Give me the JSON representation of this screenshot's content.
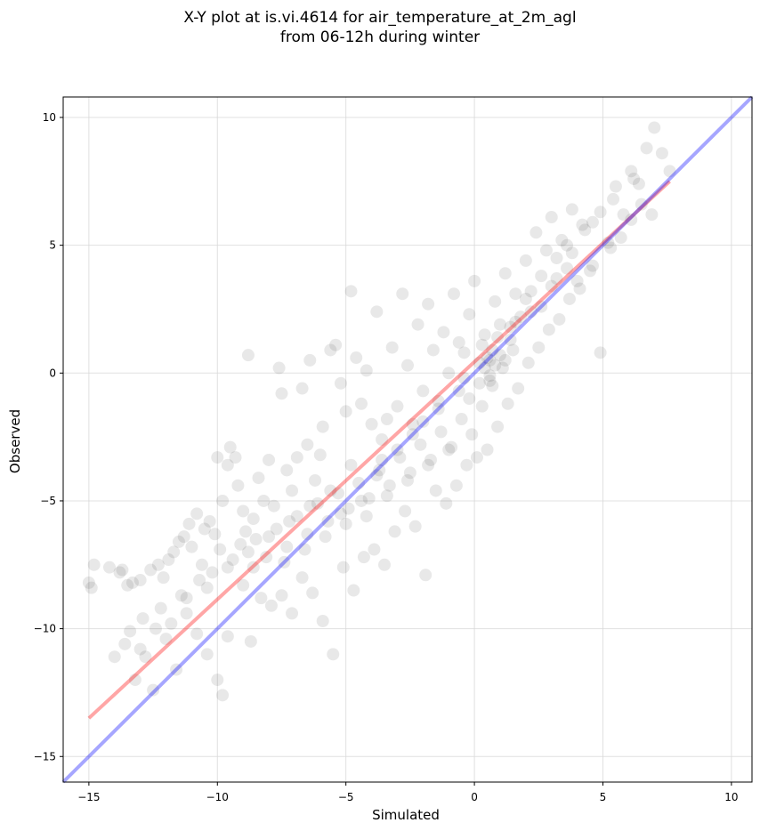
{
  "figure": {
    "title_line1": "X-Y plot at is.vi.4614 for air_temperature_at_2m_agl",
    "title_line2": "from 06-12h during winter"
  },
  "chart_data": {
    "type": "scatter",
    "title": "X-Y plot at is.vi.4614 for air_temperature_at_2m_agl\nfrom 06-12h during winter",
    "xlabel": "Simulated",
    "ylabel": "Observed",
    "xlim": [
      -16.0,
      10.8
    ],
    "ylim": [
      -16.0,
      10.8
    ],
    "x_ticks": [
      -15,
      -10,
      -5,
      0,
      5,
      10
    ],
    "y_ticks": [
      -15,
      -10,
      -5,
      0,
      5,
      10
    ],
    "x_tick_labels": [
      "−15",
      "−10",
      "−5",
      "0",
      "5",
      "10"
    ],
    "y_tick_labels": [
      "−15",
      "−10",
      "−5",
      "0",
      "5",
      "10"
    ],
    "grid": true,
    "point_color": "#000000",
    "point_opacity": 0.09,
    "points": [
      [
        -15.0,
        -8.2
      ],
      [
        -14.8,
        -7.5
      ],
      [
        -14.2,
        -7.6
      ],
      [
        -13.8,
        -7.8
      ],
      [
        -13.7,
        -7.7
      ],
      [
        -13.5,
        -8.3
      ],
      [
        -13.3,
        -8.2
      ],
      [
        -13.0,
        -8.1
      ],
      [
        -12.6,
        -7.7
      ],
      [
        -12.3,
        -7.5
      ],
      [
        -12.1,
        -8.0
      ],
      [
        -11.9,
        -7.3
      ],
      [
        -11.7,
        -7.0
      ],
      [
        -11.5,
        -6.6
      ],
      [
        -11.3,
        -6.4
      ],
      [
        -11.1,
        -5.9
      ],
      [
        -11.0,
        -6.8
      ],
      [
        -10.8,
        -5.5
      ],
      [
        -10.6,
        -7.5
      ],
      [
        -10.5,
        -6.1
      ],
      [
        -10.3,
        -5.8
      ],
      [
        -10.1,
        -6.3
      ],
      [
        -10.0,
        -3.3
      ],
      [
        -9.8,
        -5.0
      ],
      [
        -9.6,
        -3.6
      ],
      [
        -9.5,
        -2.9
      ],
      [
        -9.3,
        -3.3
      ],
      [
        -9.2,
        -4.4
      ],
      [
        -9.0,
        -5.4
      ],
      [
        -8.9,
        -6.2
      ],
      [
        -8.8,
        0.7
      ],
      [
        -8.6,
        -5.7
      ],
      [
        -8.4,
        -4.1
      ],
      [
        -8.2,
        -5.0
      ],
      [
        -8.0,
        -3.4
      ],
      [
        -7.8,
        -5.2
      ],
      [
        -7.6,
        0.2
      ],
      [
        -7.5,
        -0.8
      ],
      [
        -7.3,
        -3.8
      ],
      [
        -7.1,
        -4.6
      ],
      [
        -6.9,
        -3.3
      ],
      [
        -6.7,
        -0.6
      ],
      [
        -6.5,
        -2.8
      ],
      [
        -6.4,
        0.5
      ],
      [
        -6.2,
        -4.2
      ],
      [
        -6.0,
        -3.2
      ],
      [
        -5.9,
        -2.1
      ],
      [
        -5.6,
        0.9
      ],
      [
        -5.4,
        1.1
      ],
      [
        -5.2,
        -0.4
      ],
      [
        -5.0,
        -1.5
      ],
      [
        -4.8,
        3.2
      ],
      [
        -4.6,
        0.6
      ],
      [
        -4.4,
        -1.2
      ],
      [
        -4.2,
        0.1
      ],
      [
        -4.0,
        -2.0
      ],
      [
        -3.8,
        2.4
      ],
      [
        -3.6,
        -3.4
      ],
      [
        -3.4,
        -1.8
      ],
      [
        -3.2,
        1.0
      ],
      [
        -3.0,
        -1.3
      ],
      [
        -2.8,
        3.1
      ],
      [
        -2.6,
        0.3
      ],
      [
        -2.4,
        -2.4
      ],
      [
        -2.2,
        1.9
      ],
      [
        -2.0,
        -0.7
      ],
      [
        -1.8,
        2.7
      ],
      [
        -1.6,
        0.9
      ],
      [
        -1.4,
        -1.1
      ],
      [
        -1.2,
        1.6
      ],
      [
        -1.0,
        0.0
      ],
      [
        -0.8,
        3.1
      ],
      [
        -0.6,
        1.2
      ],
      [
        -0.4,
        -0.2
      ],
      [
        -0.2,
        2.3
      ],
      [
        0.0,
        3.6
      ],
      [
        0.2,
        0.4
      ],
      [
        0.4,
        1.5
      ],
      [
        0.6,
        -0.1
      ],
      [
        0.8,
        2.8
      ],
      [
        1.0,
        1.9
      ],
      [
        1.2,
        3.9
      ],
      [
        1.4,
        1.3
      ],
      [
        1.6,
        3.1
      ],
      [
        1.8,
        2.2
      ],
      [
        2.0,
        4.4
      ],
      [
        2.2,
        3.2
      ],
      [
        2.4,
        5.5
      ],
      [
        2.6,
        2.6
      ],
      [
        2.8,
        4.8
      ],
      [
        3.0,
        6.1
      ],
      [
        3.2,
        3.7
      ],
      [
        3.4,
        5.2
      ],
      [
        3.6,
        4.1
      ],
      [
        3.8,
        6.4
      ],
      [
        4.0,
        3.6
      ],
      [
        4.3,
        5.6
      ],
      [
        4.6,
        4.2
      ],
      [
        4.9,
        6.3
      ],
      [
        5.2,
        5.1
      ],
      [
        5.5,
        7.3
      ],
      [
        5.8,
        6.2
      ],
      [
        6.1,
        7.9
      ],
      [
        6.4,
        7.4
      ],
      [
        6.7,
        8.8
      ],
      [
        7.0,
        9.6
      ],
      [
        7.3,
        8.6
      ],
      [
        7.6,
        7.9
      ],
      [
        -14.9,
        -8.4
      ],
      [
        -14.0,
        -11.1
      ],
      [
        -13.6,
        -10.6
      ],
      [
        -13.2,
        -12.0
      ],
      [
        -12.8,
        -11.1
      ],
      [
        -12.5,
        -12.4
      ],
      [
        -12.0,
        -10.4
      ],
      [
        -11.6,
        -11.6
      ],
      [
        -11.2,
        -9.4
      ],
      [
        -10.8,
        -10.2
      ],
      [
        -10.4,
        -11.0
      ],
      [
        -10.0,
        -12.0
      ],
      [
        -9.8,
        -12.6
      ],
      [
        -9.6,
        -10.3
      ],
      [
        -9.0,
        -8.3
      ],
      [
        -8.7,
        -10.5
      ],
      [
        -8.3,
        -8.8
      ],
      [
        -7.9,
        -9.1
      ],
      [
        -7.5,
        -8.7
      ],
      [
        -7.1,
        -9.4
      ],
      [
        -6.7,
        -8.0
      ],
      [
        -6.3,
        -8.6
      ],
      [
        -5.9,
        -9.7
      ],
      [
        -5.5,
        -11.0
      ],
      [
        -5.1,
        -7.6
      ],
      [
        -4.7,
        -8.5
      ],
      [
        -4.3,
        -7.2
      ],
      [
        -3.9,
        -6.9
      ],
      [
        -3.5,
        -7.5
      ],
      [
        -3.1,
        -6.2
      ],
      [
        -2.7,
        -5.4
      ],
      [
        -2.3,
        -6.0
      ],
      [
        -1.9,
        -7.9
      ],
      [
        -1.5,
        -4.6
      ],
      [
        -1.1,
        -5.1
      ],
      [
        -0.7,
        -4.4
      ],
      [
        -0.3,
        -3.6
      ],
      [
        0.1,
        -3.3
      ],
      [
        0.5,
        -3.0
      ],
      [
        0.9,
        -2.1
      ],
      [
        1.3,
        -1.2
      ],
      [
        1.7,
        -0.6
      ],
      [
        2.1,
        0.4
      ],
      [
        2.5,
        1.0
      ],
      [
        2.9,
        1.7
      ],
      [
        3.3,
        2.1
      ],
      [
        3.7,
        2.9
      ],
      [
        4.1,
        3.3
      ],
      [
        4.5,
        4.0
      ],
      [
        4.9,
        0.8
      ],
      [
        5.3,
        4.9
      ],
      [
        5.7,
        5.3
      ],
      [
        6.1,
        6.0
      ],
      [
        6.5,
        6.6
      ],
      [
        6.9,
        6.2
      ],
      [
        -8.5,
        -6.5
      ],
      [
        -8.1,
        -7.2
      ],
      [
        -7.7,
        -6.1
      ],
      [
        -7.3,
        -6.8
      ],
      [
        -6.9,
        -5.6
      ],
      [
        -6.5,
        -6.3
      ],
      [
        -6.1,
        -5.1
      ],
      [
        -5.7,
        -5.8
      ],
      [
        -5.3,
        -4.7
      ],
      [
        -4.9,
        -5.3
      ],
      [
        -4.5,
        -4.3
      ],
      [
        -4.1,
        -4.9
      ],
      [
        -3.7,
        -3.8
      ],
      [
        -3.3,
        -4.4
      ],
      [
        -2.9,
        -3.3
      ],
      [
        -2.5,
        -3.9
      ],
      [
        -2.1,
        -2.8
      ],
      [
        -1.7,
        -3.4
      ],
      [
        -1.3,
        -2.3
      ],
      [
        -0.9,
        -2.9
      ],
      [
        -0.5,
        -1.8
      ],
      [
        -0.1,
        -2.4
      ],
      [
        0.3,
        -1.3
      ],
      [
        0.7,
        -0.5
      ],
      [
        1.1,
        0.2
      ],
      [
        1.5,
        0.9
      ],
      [
        -9.4,
        -7.3
      ],
      [
        -9.9,
        -6.9
      ],
      [
        -10.7,
        -8.1
      ],
      [
        -11.4,
        -8.7
      ],
      [
        -12.2,
        -9.2
      ],
      [
        -12.9,
        -9.6
      ],
      [
        -13.4,
        -10.1
      ],
      [
        -10.2,
        -7.8
      ],
      [
        -9.1,
        -6.7
      ],
      [
        -8.6,
        -7.6
      ],
      [
        -7.4,
        -7.4
      ],
      [
        -6.6,
        -6.9
      ],
      [
        -5.8,
        -6.4
      ],
      [
        -5.0,
        -5.9
      ],
      [
        -4.2,
        -5.6
      ],
      [
        -3.4,
        -4.8
      ],
      [
        -2.6,
        -4.2
      ],
      [
        -1.8,
        -3.6
      ],
      [
        -1.0,
        -3.0
      ],
      [
        -0.2,
        -1.0
      ],
      [
        0.6,
        0.5
      ],
      [
        1.4,
        1.8
      ],
      [
        2.2,
        2.4
      ],
      [
        3.0,
        3.4
      ],
      [
        3.8,
        4.7
      ],
      [
        4.6,
        5.9
      ],
      [
        5.4,
        6.8
      ],
      [
        6.2,
        7.6
      ],
      [
        0.4,
        0.2
      ],
      [
        0.5,
        0.6
      ],
      [
        0.7,
        0.9
      ],
      [
        0.3,
        1.1
      ],
      [
        0.8,
        0.3
      ],
      [
        0.6,
        -0.3
      ],
      [
        1.0,
        0.7
      ],
      [
        0.2,
        -0.4
      ],
      [
        -0.4,
        0.8
      ],
      [
        0.9,
        1.4
      ],
      [
        1.2,
        0.5
      ],
      [
        -0.6,
        -0.7
      ],
      [
        1.6,
        2.0
      ],
      [
        2.0,
        2.9
      ],
      [
        2.6,
        3.8
      ],
      [
        3.2,
        4.5
      ],
      [
        3.6,
        5.0
      ],
      [
        4.2,
        5.8
      ],
      [
        -3.0,
        -3.0
      ],
      [
        -3.8,
        -4.0
      ],
      [
        -4.4,
        -5.0
      ],
      [
        -5.2,
        -5.5
      ],
      [
        -2.0,
        -1.9
      ],
      [
        -1.4,
        -1.4
      ],
      [
        -2.4,
        -2.0
      ],
      [
        -3.6,
        -2.6
      ],
      [
        -4.8,
        -3.6
      ],
      [
        -5.6,
        -4.6
      ],
      [
        -6.4,
        -5.2
      ],
      [
        -7.2,
        -5.8
      ],
      [
        -8.0,
        -6.4
      ],
      [
        -8.8,
        -7.0
      ],
      [
        -9.6,
        -7.6
      ],
      [
        -10.4,
        -8.4
      ],
      [
        -11.2,
        -8.8
      ],
      [
        -11.8,
        -9.8
      ],
      [
        -12.4,
        -10.0
      ],
      [
        -13.0,
        -10.8
      ]
    ],
    "series": [
      {
        "type": "line",
        "color": "#ff0000",
        "opacity": 0.35,
        "x": [
          -15.0,
          7.6
        ],
        "y": [
          -13.5,
          7.5
        ]
      },
      {
        "type": "line",
        "color": "#0000ff",
        "opacity": 0.35,
        "x": [
          -16.0,
          10.8
        ],
        "y": [
          -16.0,
          10.8
        ]
      }
    ]
  }
}
